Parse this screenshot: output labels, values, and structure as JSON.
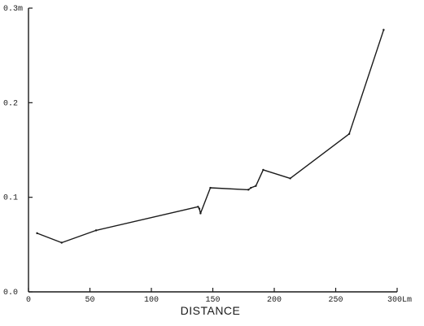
{
  "chart_data": {
    "type": "line",
    "title": "",
    "xlabel": "DISTANCE",
    "ylabel": "",
    "x_unit_label": "Lm",
    "y_unit_label": "m",
    "xlim": [
      0,
      300
    ],
    "ylim": [
      0,
      0.3
    ],
    "grid": false,
    "x_ticks": [
      0,
      50,
      100,
      150,
      200,
      250,
      300
    ],
    "x_tick_labels": [
      "0",
      "50",
      "100",
      "150",
      "200",
      "250",
      "300"
    ],
    "y_ticks": [
      0,
      0.1,
      0.2,
      0.3
    ],
    "y_tick_labels": [
      "0.0",
      "0.1",
      "0.2",
      "0.3"
    ],
    "series": [
      {
        "x": [
          7,
          27,
          55,
          138,
          139,
          140,
          148,
          179,
          181,
          185,
          191,
          213,
          261,
          289
        ],
        "y": [
          0.062,
          0.052,
          0.065,
          0.09,
          0.088,
          0.083,
          0.11,
          0.108,
          0.11,
          0.112,
          0.129,
          0.12,
          0.167,
          0.277
        ]
      }
    ]
  }
}
